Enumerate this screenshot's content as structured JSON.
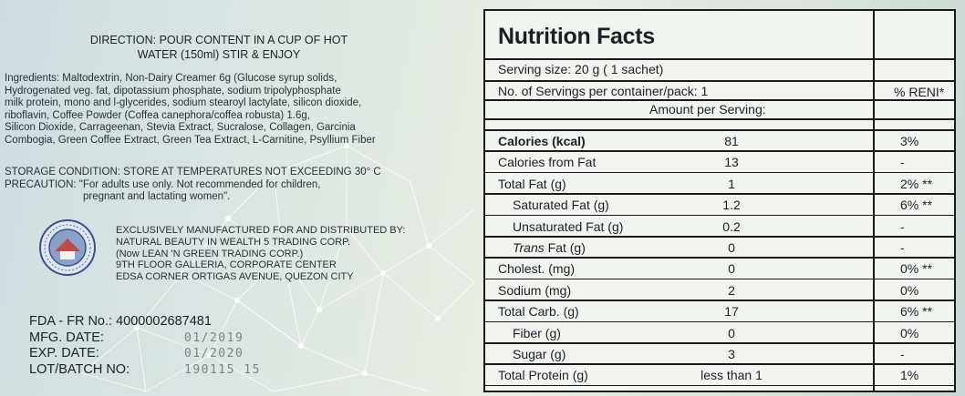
{
  "direction": [
    "DIRECTION: POUR CONTENT IN A CUP OF HOT",
    "WATER (150ml) STIR & ENJOY"
  ],
  "ingredients": [
    "Ingredients: Maltodextrin, Non-Dairy Creamer 6g (Glucose syrup solids,",
    "Hydrogenated veg. fat, dipotassium phosphate, sodium tripolyphosphate",
    "milk protein, mono and l-glycerides, sodium stearoyl lactylate, silicon dioxide,",
    "riboflavin, Coffee Powder (Coffea canephora/coffea robusta) 1.6g,",
    "Silicon Dioxide, Carrageenan, Stevia Extract, Sucralose, Collagen, Garcinia",
    "Combogia, Green Coffee Extract, Green Tea Extract, L-Carnitine, Psyllium Fiber"
  ],
  "storage": "STORAGE CONDITION: STORE AT TEMPERATURES NOT EXCEEDING 30° C",
  "precaution": [
    "PRECAUTION: \"For adults use only. Not recommended for children,",
    "pregnant and lactating women\"."
  ],
  "seal_text": "SAMAHAN NG MGA KOLEHIYO PHILIPPINES",
  "manufacturer": [
    "EXCLUSIVELY MANUFACTURED FOR AND DISTRIBUTED BY:",
    "NATURAL BEAUTY IN WEALTH 5 TRADING CORP.",
    "(Now LEAN 'N GREEN TRADING CORP.)",
    "9TH FLOOR GALLERIA, CORPORATE CENTER",
    "EDSA CORNER ORTIGAS AVENUE, QUEZON CITY"
  ],
  "fda": {
    "label": "FDA - FR No.:",
    "value": "4000002687481"
  },
  "dates": [
    {
      "label": "MFG. DATE:",
      "value": "01/2019"
    },
    {
      "label": "EXP. DATE:",
      "value": "01/2020"
    },
    {
      "label": "LOT/BATCH NO:",
      "value": "190115 15"
    }
  ],
  "nutrition": {
    "title": "Nutrition Facts",
    "serving_size": "Serving size:   20 g ( 1 sachet)",
    "servings_per_container": "No. of Servings per container/pack:  1",
    "reni_header": "% RENI*",
    "amount_header": "Amount per Serving:",
    "rows": [
      {
        "name": "Calories (kcal)",
        "amount": "81",
        "reni": "3%"
      },
      {
        "name": "Calories from Fat",
        "amount": "13",
        "reni": "-"
      },
      {
        "name": "Total Fat (g)",
        "amount": "1",
        "reni": "2% **"
      },
      {
        "name": "Saturated Fat (g)",
        "amount": "1.2",
        "reni": "6% **"
      },
      {
        "name": "Unsaturated Fat (g)",
        "amount": "0.2",
        "reni": "-"
      },
      {
        "name": "Trans Fat (g)",
        "amount": "0",
        "reni": "-"
      },
      {
        "name": "Cholest. (mg)",
        "amount": "0",
        "reni": "0% **"
      },
      {
        "name": "Sodium (mg)",
        "amount": "2",
        "reni": "0%"
      },
      {
        "name": "Total Carb. (g)",
        "amount": "17",
        "reni": "6% **"
      },
      {
        "name": "Fiber  (g)",
        "amount": "0",
        "reni": "0%"
      },
      {
        "name": "Sugar  (g)",
        "amount": "3",
        "reni": "-"
      },
      {
        "name": "Total Protein (g)",
        "amount": "less than 1",
        "reni": "1%"
      }
    ]
  }
}
